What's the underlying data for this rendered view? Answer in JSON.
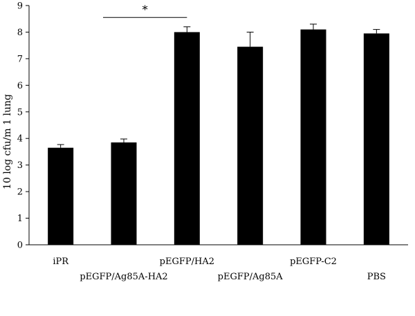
{
  "chart_data": {
    "type": "bar",
    "categories": [
      "iPR",
      "pEGFP/Ag85A-HA2",
      "pEGFP/HA2",
      "pEGFP/Ag85A",
      "pEGFP-C2",
      "PBS"
    ],
    "values": [
      3.65,
      3.85,
      8.0,
      7.45,
      8.1,
      7.95
    ],
    "errors": [
      0.12,
      0.13,
      0.2,
      0.55,
      0.2,
      0.15
    ],
    "ylabel": "10 log cfu/m 1 lung",
    "xlabel": "",
    "ylim": [
      0,
      9
    ],
    "yticks": [
      0,
      1,
      2,
      3,
      4,
      5,
      6,
      7,
      8,
      9
    ],
    "grid": false,
    "legend": "none",
    "bar_color": "#000000",
    "annotations": [
      {
        "text": "*",
        "from_category": "pEGFP/Ag85A-HA2",
        "to_category": "pEGFP/HA2",
        "y": 8.55
      }
    ]
  }
}
